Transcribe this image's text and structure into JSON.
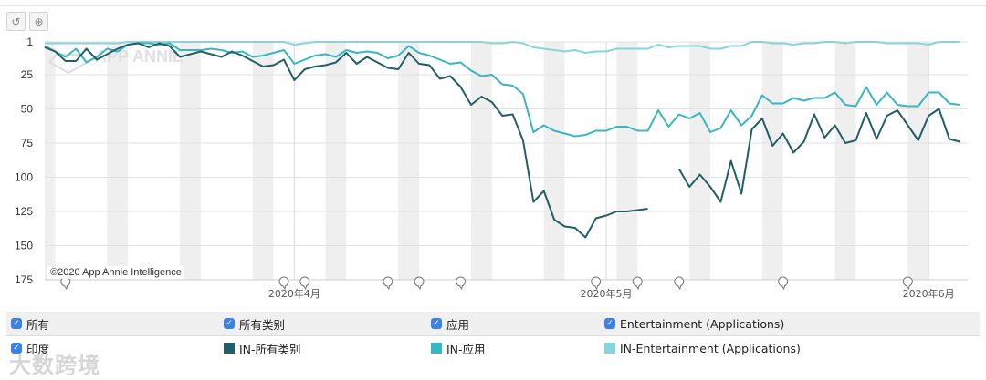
{
  "toolbar": {
    "reset_icon": "undo-icon",
    "zoom_icon": "zoom-in-icon"
  },
  "copyright": "©2020 App Annie Intelligence",
  "watermark_logo": "APP ANNIE",
  "corner_logo": "大数跨境",
  "legend": {
    "filters": [
      {
        "label": "所有",
        "checked": true
      },
      {
        "label": "所有类别",
        "checked": true
      },
      {
        "label": "应用",
        "checked": true
      },
      {
        "label": "Entertainment (Applications)",
        "checked": true
      }
    ],
    "country": {
      "label": "印度",
      "checked": true
    },
    "series": [
      {
        "label": "IN-所有类别",
        "color": "#235f68"
      },
      {
        "label": "IN-应用",
        "color": "#38b6c3"
      },
      {
        "label": "IN-Entertainment (Applications)",
        "color": "#86d5dc"
      }
    ]
  },
  "chart_data": {
    "type": "line",
    "title": "",
    "xlabel": "",
    "ylabel": "",
    "y_inverted": true,
    "ylim": [
      1,
      175
    ],
    "y_ticks": [
      "1",
      "25",
      "50",
      "75",
      "100",
      "125",
      "150",
      "175"
    ],
    "x_start": "2020-03-08",
    "x_end": "2020-06-04",
    "x_ticks": [
      {
        "date": "2020-04-01",
        "label": "2020年4月"
      },
      {
        "date": "2020-05-01",
        "label": "2020年5月"
      },
      {
        "date": "2020-06-01",
        "label": "2020年6月"
      }
    ],
    "grid": true,
    "weekend_shading": true,
    "legend_position": "bottom",
    "event_dates": [
      "2020-03-10",
      "2020-03-31",
      "2020-04-02",
      "2020-04-10",
      "2020-04-13",
      "2020-04-17",
      "2020-04-30",
      "2020-05-04",
      "2020-05-08",
      "2020-05-18",
      "2020-05-30"
    ],
    "series": [
      {
        "name": "IN-所有类别",
        "color": "#235f68",
        "values": [
          5,
          8,
          15,
          15,
          6,
          14,
          10,
          6,
          3,
          2,
          5,
          2,
          4,
          12,
          10,
          8,
          10,
          12,
          8,
          11,
          15,
          19,
          18,
          14,
          29,
          21,
          19,
          18,
          16,
          9,
          17,
          12,
          16,
          20,
          21,
          9,
          17,
          18,
          28,
          26,
          34,
          47,
          41,
          45,
          55,
          54,
          73,
          118,
          110,
          131,
          136,
          137,
          144,
          130,
          128,
          125,
          125,
          124,
          123,
          null,
          null,
          94,
          107,
          98,
          107,
          118,
          88,
          112,
          65,
          57,
          77,
          68,
          82,
          74,
          54,
          71,
          62,
          75,
          73,
          53,
          72,
          55,
          51,
          62,
          73,
          55,
          50,
          72,
          74
        ]
      },
      {
        "name": "IN-应用",
        "color": "#38b6c3",
        "values": [
          4,
          8,
          12,
          6,
          16,
          12,
          6,
          8,
          3,
          2,
          2,
          3,
          2,
          7,
          7,
          7,
          6,
          7,
          9,
          8,
          12,
          11,
          9,
          7,
          17,
          14,
          11,
          10,
          12,
          7,
          9,
          8,
          9,
          13,
          11,
          4,
          9,
          11,
          14,
          17,
          16,
          22,
          26,
          25,
          32,
          33,
          39,
          67,
          62,
          66,
          68,
          70,
          69,
          66,
          66,
          63,
          63,
          66,
          66,
          51,
          63,
          54,
          57,
          53,
          67,
          64,
          51,
          62,
          55,
          40,
          46,
          46,
          42,
          44,
          42,
          42,
          38,
          47,
          48,
          34,
          47,
          38,
          47,
          48,
          48,
          38,
          38,
          46,
          47
        ]
      },
      {
        "name": "IN-Entertainment (Applications)",
        "color": "#86d5dc",
        "values": [
          2,
          2,
          2,
          2,
          2,
          2,
          2,
          2,
          1,
          1,
          1,
          1,
          1,
          1,
          1,
          1,
          1,
          1,
          1,
          1,
          1,
          1,
          1,
          1,
          3,
          2,
          1,
          1,
          1,
          1,
          1,
          1,
          1,
          1,
          1,
          1,
          1,
          1,
          1,
          1,
          1,
          1,
          1,
          2,
          2,
          1,
          2,
          5,
          6,
          7,
          8,
          7,
          9,
          8,
          8,
          6,
          6,
          6,
          6,
          3,
          5,
          4,
          4,
          4,
          6,
          6,
          4,
          4,
          1,
          1,
          2,
          2,
          3,
          2,
          2,
          1,
          1,
          2,
          1,
          1,
          1,
          2,
          2,
          2,
          2,
          3,
          1,
          1,
          1
        ]
      }
    ]
  }
}
